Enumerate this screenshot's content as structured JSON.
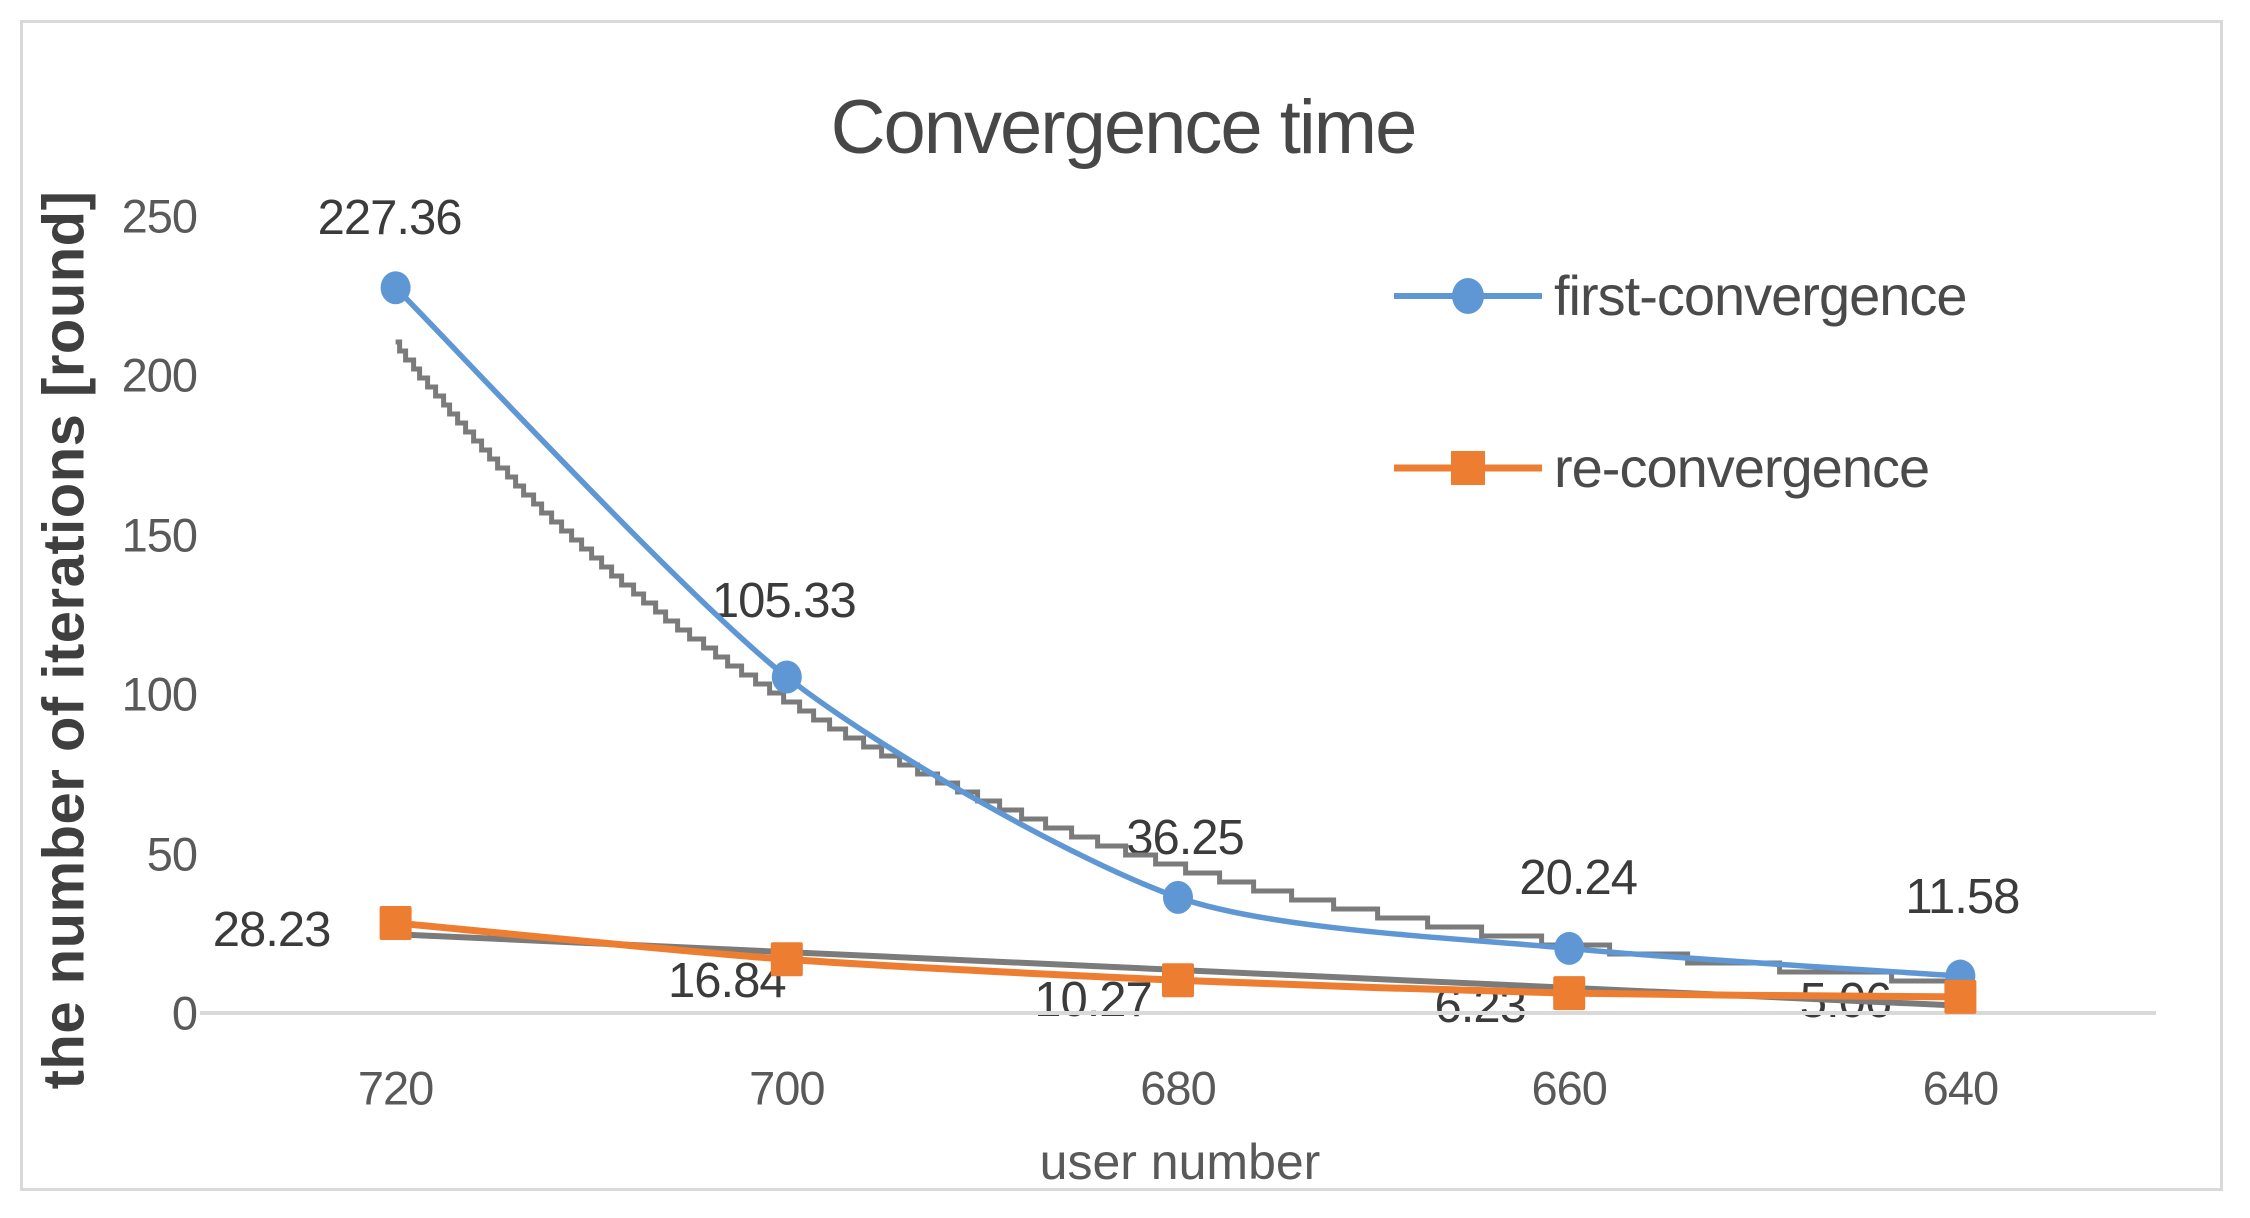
{
  "chart_data": {
    "type": "line",
    "title": "Convergence time",
    "xlabel": "user number",
    "ylabel": "the number of iterations [round]",
    "categories": [
      "720",
      "700",
      "680",
      "660",
      "640"
    ],
    "yticks": [
      "0",
      "50",
      "100",
      "150",
      "200",
      "250"
    ],
    "ytick_values": [
      0,
      50,
      100,
      150,
      200,
      250
    ],
    "ylim": [
      0,
      250
    ],
    "grid": "off",
    "legend_position": "inside-upper-right",
    "series": [
      {
        "name": "first-convergence",
        "color": "#5F97D5",
        "marker": "circle",
        "values": [
          227.36,
          105.33,
          36.25,
          20.24,
          11.58
        ],
        "data_labels": [
          "227.36",
          "105.33",
          "36.25",
          "20.24",
          "11.58"
        ]
      },
      {
        "name": "re-convergence",
        "color": "#ED7D31",
        "marker": "square",
        "values": [
          28.23,
          16.84,
          10.27,
          6.23,
          5.06
        ],
        "data_labels": [
          "28.23",
          "16.84",
          "10.27",
          "6.23",
          "5.06"
        ]
      }
    ],
    "trendlines": [
      {
        "for": "first-convergence",
        "type": "exponential",
        "style": "stepped",
        "color": "#7b7b7b",
        "values_at_categories": [
          210.0,
          98.2,
          45.9,
          21.5,
          10.0
        ]
      },
      {
        "for": "re-convergence",
        "type": "linear",
        "style": "straight",
        "color": "#7b7b7b",
        "values_at_categories": [
          24.7,
          19.0,
          13.3,
          7.6,
          1.9
        ]
      }
    ],
    "colors": {
      "axis_line": "#d9d9d9",
      "frame_border": "#d9d9d9",
      "tick_text": "#595959",
      "label_text": "#3b3b3b",
      "title_text": "#474747"
    }
  }
}
